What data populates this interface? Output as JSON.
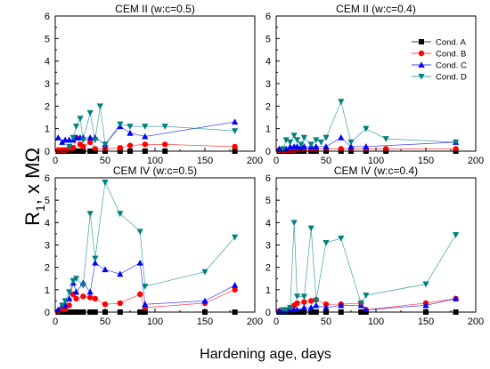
{
  "figure": {
    "ylabel_main": "R",
    "ylabel_sub": "1",
    "ylabel_rest": ", x MΩ",
    "xlabel": "Hardening age, days"
  },
  "legend": {
    "placement": "top-right (inside upper-right panel)",
    "entries": [
      {
        "label": "Cond. A",
        "color": "#000000",
        "marker": "square"
      },
      {
        "label": "Cond. B",
        "color": "#ff0000",
        "marker": "circle"
      },
      {
        "label": "Cond. C",
        "color": "#0000ff",
        "marker": "triangle-up"
      },
      {
        "label": "Cond. D",
        "color": "#008080",
        "marker": "triangle-down"
      }
    ]
  },
  "chart_data": [
    {
      "type": "scatter",
      "title": "CEM II (w:c=0.5)",
      "xlim": [
        0,
        200
      ],
      "ylim": [
        0,
        6
      ],
      "xticks": [
        0,
        50,
        100,
        150,
        200
      ],
      "yticks": [
        0,
        1,
        2,
        3,
        4,
        5,
        6
      ],
      "grid": false,
      "series": [
        {
          "name": "Cond. A",
          "x": [
            3,
            7,
            10,
            14,
            18,
            21,
            25,
            28,
            35,
            40,
            50,
            65,
            75,
            90,
            110,
            180
          ],
          "y": [
            0,
            0,
            0,
            0,
            0,
            0,
            0,
            0,
            0,
            0,
            0,
            0,
            0,
            0,
            0,
            0
          ]
        },
        {
          "name": "Cond. B",
          "x": [
            3,
            7,
            10,
            14,
            18,
            21,
            25,
            28,
            35,
            40,
            50,
            65,
            75,
            90,
            110,
            180
          ],
          "y": [
            0.05,
            0.05,
            0.05,
            0.1,
            0.15,
            0.6,
            0.3,
            0.2,
            0.4,
            0.1,
            0.1,
            0.15,
            0.25,
            0.3,
            0.3,
            0.2
          ]
        },
        {
          "name": "Cond. C",
          "x": [
            3,
            7,
            10,
            14,
            18,
            21,
            25,
            28,
            35,
            40,
            50,
            65,
            75,
            90,
            180
          ],
          "y": [
            0.6,
            0.4,
            0.5,
            0.5,
            0.5,
            0.6,
            0.6,
            0.6,
            0.6,
            0.6,
            0.3,
            1.1,
            0.8,
            0.65,
            1.3
          ]
        },
        {
          "name": "Cond. D",
          "x": [
            14,
            18,
            21,
            25,
            28,
            35,
            40,
            45,
            50,
            65,
            75,
            90,
            110,
            180
          ],
          "y": [
            0.2,
            0.6,
            1.1,
            1.45,
            0.5,
            1.7,
            0.5,
            2.0,
            0.3,
            1.2,
            1.1,
            1.1,
            1.1,
            0.9
          ]
        }
      ]
    },
    {
      "type": "scatter",
      "title": "CEM II (w:c=0.4)",
      "xlim": [
        0,
        200
      ],
      "ylim": [
        0,
        6
      ],
      "xticks": [
        0,
        50,
        100,
        150,
        200
      ],
      "yticks": [
        0,
        1,
        2,
        3,
        4,
        5,
        6
      ],
      "grid": false,
      "series": [
        {
          "name": "Cond. A",
          "x": [
            3,
            7,
            10,
            14,
            18,
            21,
            25,
            28,
            35,
            40,
            50,
            65,
            75,
            90,
            110,
            180
          ],
          "y": [
            0,
            0,
            0,
            0,
            0,
            0,
            0,
            0,
            0,
            0,
            0,
            0,
            0,
            0,
            0,
            0
          ]
        },
        {
          "name": "Cond. B",
          "x": [
            3,
            7,
            10,
            14,
            18,
            21,
            25,
            28,
            35,
            40,
            50,
            65,
            75,
            90,
            110,
            180
          ],
          "y": [
            0.05,
            0.05,
            0.05,
            0.05,
            0.05,
            0.1,
            0.1,
            0.1,
            0.1,
            0.1,
            0.1,
            0.1,
            0.1,
            0.1,
            0.1,
            0.1
          ]
        },
        {
          "name": "Cond. C",
          "x": [
            3,
            7,
            10,
            14,
            18,
            21,
            25,
            28,
            35,
            40,
            50,
            65,
            75,
            90,
            180
          ],
          "y": [
            0.1,
            0.1,
            0.1,
            0.2,
            0.2,
            0.2,
            0.2,
            0.2,
            0.2,
            0.2,
            0.2,
            0.6,
            0.2,
            0.2,
            0.4
          ]
        },
        {
          "name": "Cond. D",
          "x": [
            7,
            10,
            14,
            18,
            21,
            25,
            28,
            35,
            40,
            45,
            50,
            65,
            75,
            90,
            110,
            180
          ],
          "y": [
            0.1,
            0.5,
            0.4,
            0.7,
            0.5,
            0.3,
            0.6,
            0.3,
            0.5,
            0.4,
            0.6,
            2.2,
            0.4,
            1.0,
            0.55,
            0.4
          ]
        }
      ]
    },
    {
      "type": "scatter",
      "title": "CEM IV (w:c=0.5)",
      "xlim": [
        0,
        200
      ],
      "ylim": [
        0,
        6
      ],
      "xticks": [
        0,
        50,
        100,
        150,
        200
      ],
      "yticks": [
        0,
        1,
        2,
        3,
        4,
        5,
        6
      ],
      "grid": false,
      "series": [
        {
          "name": "Cond. A",
          "x": [
            3,
            7,
            10,
            14,
            18,
            21,
            25,
            28,
            35,
            40,
            50,
            65,
            85,
            90,
            150,
            180
          ],
          "y": [
            0,
            0,
            0,
            0,
            0,
            0,
            0,
            0,
            0,
            0,
            0,
            0,
            0,
            0,
            0,
            0
          ]
        },
        {
          "name": "Cond. B",
          "x": [
            3,
            7,
            10,
            14,
            18,
            21,
            28,
            35,
            40,
            50,
            65,
            85,
            90,
            150,
            180
          ],
          "y": [
            0.05,
            0.1,
            0.1,
            0.3,
            0.8,
            0.6,
            0.7,
            0.65,
            0.6,
            0.35,
            0.4,
            0.8,
            0.2,
            0.4,
            1.0
          ]
        },
        {
          "name": "Cond. C",
          "x": [
            3,
            7,
            10,
            14,
            18,
            21,
            28,
            35,
            40,
            50,
            65,
            85,
            90,
            150,
            180
          ],
          "y": [
            0.1,
            0.3,
            0.3,
            0.6,
            1.3,
            0.9,
            1.3,
            0.9,
            2.2,
            1.9,
            1.7,
            2.2,
            0.35,
            0.5,
            1.2
          ]
        },
        {
          "name": "Cond. D",
          "x": [
            7,
            10,
            14,
            18,
            21,
            28,
            35,
            40,
            50,
            65,
            85,
            90,
            150,
            180
          ],
          "y": [
            0.3,
            0.5,
            0.9,
            1.4,
            1.5,
            1.2,
            4.4,
            2.4,
            5.8,
            4.4,
            3.6,
            1.15,
            1.8,
            3.35
          ]
        }
      ]
    },
    {
      "type": "scatter",
      "title": "CEM IV (w:c=0.4)",
      "xlim": [
        0,
        200
      ],
      "ylim": [
        0,
        6
      ],
      "xticks": [
        0,
        50,
        100,
        150,
        200
      ],
      "yticks": [
        0,
        1,
        2,
        3,
        4,
        5,
        6
      ],
      "grid": false,
      "series": [
        {
          "name": "Cond. A",
          "x": [
            3,
            7,
            10,
            14,
            18,
            21,
            25,
            28,
            35,
            40,
            50,
            65,
            85,
            90,
            150,
            180
          ],
          "y": [
            0,
            0,
            0,
            0,
            0,
            0,
            0,
            0,
            0,
            0,
            0,
            0,
            0,
            0,
            0,
            0
          ]
        },
        {
          "name": "Cond. B",
          "x": [
            3,
            7,
            10,
            14,
            18,
            21,
            28,
            35,
            40,
            50,
            65,
            85,
            90,
            150,
            180
          ],
          "y": [
            0.05,
            0.05,
            0.1,
            0.1,
            0.3,
            0.4,
            0.45,
            0.5,
            0.55,
            0.35,
            0.35,
            0.4,
            0.1,
            0.4,
            0.6
          ]
        },
        {
          "name": "Cond. C",
          "x": [
            3,
            7,
            10,
            14,
            18,
            21,
            28,
            35,
            40,
            50,
            65,
            85,
            90,
            150,
            180
          ],
          "y": [
            0.05,
            0.05,
            0.05,
            0.1,
            0.1,
            0.1,
            0.2,
            0.2,
            0.3,
            0.2,
            0.3,
            0.3,
            0.1,
            0.3,
            0.6
          ]
        },
        {
          "name": "Cond. D",
          "x": [
            7,
            10,
            14,
            18,
            21,
            28,
            35,
            40,
            50,
            65,
            85,
            90,
            150,
            180
          ],
          "y": [
            0.1,
            0.1,
            0.2,
            4.0,
            0.7,
            0.7,
            3.75,
            0.5,
            3.1,
            3.3,
            0.4,
            0.75,
            1.25,
            3.45
          ]
        }
      ]
    }
  ]
}
